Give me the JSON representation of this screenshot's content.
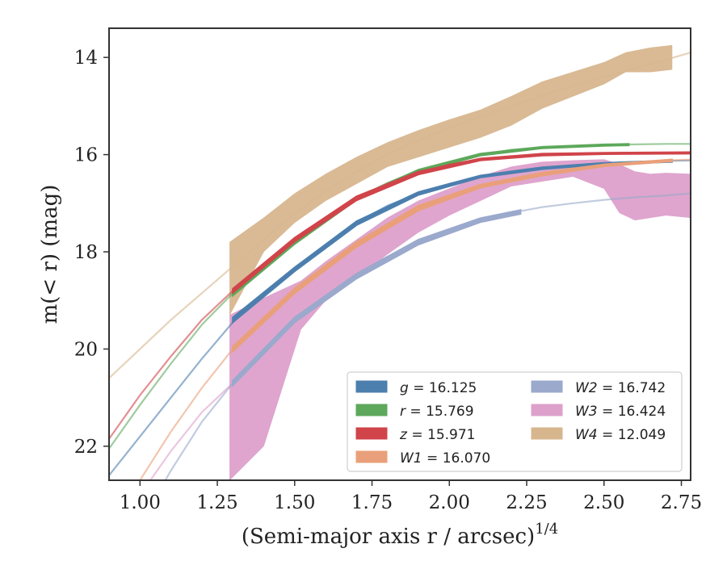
{
  "chart_data": {
    "type": "line",
    "title": "",
    "xlabel": "(Semi-major axis r / arcsec)",
    "xlabel_exponent": "1/4",
    "ylabel": "m(< r) (mag)",
    "xlim": [
      0.9,
      2.78
    ],
    "ylim": [
      22.7,
      13.4
    ],
    "y_inverted": true,
    "grid": false,
    "legend_position": "lower-right",
    "x_ticks": [
      "1.00",
      "1.25",
      "1.50",
      "1.75",
      "2.00",
      "2.25",
      "2.50",
      "2.75"
    ],
    "x_tick_values": [
      1.0,
      1.25,
      1.5,
      1.75,
      2.0,
      2.25,
      2.5,
      2.75
    ],
    "y_ticks": [
      "14",
      "16",
      "18",
      "20",
      "22"
    ],
    "y_tick_values": [
      14,
      16,
      18,
      20,
      22
    ],
    "series": [
      {
        "name": "g = 16.125",
        "legend_label": "g",
        "legend_value": "16.125",
        "color": "#4C7FAE",
        "model_x": [
          0.9,
          1.0,
          1.1,
          1.2,
          1.3,
          1.4,
          1.5,
          1.6,
          1.7,
          1.8,
          1.9,
          2.0,
          2.1,
          2.2,
          2.3,
          2.4,
          2.5,
          2.6,
          2.7,
          2.78
        ],
        "model_y": [
          22.6,
          21.8,
          21.0,
          20.2,
          19.45,
          18.9,
          18.35,
          17.85,
          17.4,
          17.05,
          16.8,
          16.6,
          16.45,
          16.35,
          16.28,
          16.22,
          16.18,
          16.15,
          16.13,
          16.12
        ],
        "data_x": [
          1.3,
          1.5,
          1.7,
          1.9,
          2.1,
          2.3,
          2.5,
          2.72
        ],
        "data_lo": [
          19.35,
          18.32,
          17.37,
          16.77,
          16.43,
          16.26,
          16.17,
          16.12
        ],
        "data_hi": [
          19.45,
          18.4,
          17.45,
          16.83,
          16.47,
          16.3,
          16.2,
          16.15
        ]
      },
      {
        "name": "r = 15.769",
        "legend_label": "r",
        "legend_value": "15.769",
        "color": "#5DA85B",
        "model_x": [
          0.9,
          1.0,
          1.1,
          1.2,
          1.3,
          1.4,
          1.5,
          1.6,
          1.7,
          1.8,
          1.9,
          2.0,
          2.1,
          2.2,
          2.3,
          2.4,
          2.5,
          2.6,
          2.7,
          2.78
        ],
        "model_y": [
          22.05,
          21.15,
          20.3,
          19.5,
          18.85,
          18.3,
          17.8,
          17.3,
          16.9,
          16.58,
          16.33,
          16.15,
          16.0,
          15.9,
          15.85,
          15.82,
          15.8,
          15.79,
          15.78,
          15.78
        ],
        "data_x": [
          1.3,
          1.5,
          1.7,
          1.9,
          2.1,
          2.3,
          2.5,
          2.58
        ],
        "data_lo": [
          18.82,
          17.78,
          16.88,
          16.31,
          15.98,
          15.84,
          15.79,
          15.78
        ],
        "data_hi": [
          18.9,
          17.84,
          16.93,
          16.36,
          16.02,
          15.87,
          15.82,
          15.81
        ]
      },
      {
        "name": "z = 15.971",
        "legend_label": "z",
        "legend_value": "15.971",
        "color": "#D0444A",
        "model_x": [
          0.9,
          1.0,
          1.1,
          1.2,
          1.3,
          1.4,
          1.5,
          1.6,
          1.7,
          1.8,
          1.9,
          2.0,
          2.1,
          2.2,
          2.3,
          2.4,
          2.5,
          2.6,
          2.7,
          2.78
        ],
        "model_y": [
          21.85,
          20.95,
          20.15,
          19.4,
          18.8,
          18.25,
          17.75,
          17.3,
          16.9,
          16.6,
          16.38,
          16.2,
          16.1,
          16.04,
          16.0,
          15.99,
          15.98,
          15.97,
          15.97,
          15.97
        ],
        "data_x": [
          1.3,
          1.5,
          1.7,
          1.9,
          2.1,
          2.3,
          2.5,
          2.78
        ],
        "data_lo": [
          18.76,
          17.71,
          16.86,
          16.35,
          16.08,
          15.98,
          15.96,
          15.95
        ],
        "data_hi": [
          18.84,
          17.79,
          16.94,
          16.41,
          16.12,
          16.02,
          15.99,
          15.98
        ]
      },
      {
        "name": "W1 = 16.070",
        "legend_label": "W1",
        "legend_value": "16.070",
        "color": "#E9A07A",
        "model_x": [
          0.9,
          1.0,
          1.1,
          1.2,
          1.3,
          1.4,
          1.5,
          1.6,
          1.7,
          1.8,
          1.9,
          2.0,
          2.1,
          2.2,
          2.3,
          2.4,
          2.5,
          2.6,
          2.7,
          2.78
        ],
        "model_y": [
          23.6,
          22.7,
          21.7,
          20.8,
          20.0,
          19.35,
          18.8,
          18.3,
          17.85,
          17.45,
          17.1,
          16.85,
          16.65,
          16.5,
          16.4,
          16.3,
          16.22,
          16.16,
          16.12,
          16.1
        ],
        "data_x": [
          1.3,
          1.5,
          1.7,
          1.9,
          2.1,
          2.3,
          2.5,
          2.72
        ],
        "data_lo": [
          19.95,
          18.75,
          17.8,
          17.05,
          16.62,
          16.37,
          16.2,
          16.1
        ],
        "data_hi": [
          20.05,
          18.85,
          17.9,
          17.15,
          16.68,
          16.43,
          16.24,
          16.14
        ]
      },
      {
        "name": "W2 = 16.742",
        "legend_label": "W2",
        "legend_value": "16.742",
        "color": "#9AA9CC",
        "model_x": [
          0.9,
          1.0,
          1.1,
          1.2,
          1.3,
          1.4,
          1.5,
          1.6,
          1.7,
          1.8,
          1.9,
          2.0,
          2.1,
          2.2,
          2.3,
          2.4,
          2.5,
          2.6,
          2.7,
          2.78
        ],
        "model_y": [
          24.8,
          23.6,
          22.5,
          21.5,
          20.7,
          20.0,
          19.4,
          18.9,
          18.5,
          18.1,
          17.8,
          17.55,
          17.35,
          17.2,
          17.08,
          17.0,
          16.93,
          16.88,
          16.84,
          16.8
        ],
        "data_x": [
          1.3,
          1.5,
          1.7,
          1.9,
          2.1,
          2.23
        ],
        "data_lo": [
          20.65,
          19.35,
          18.45,
          17.75,
          17.31,
          17.14
        ],
        "data_hi": [
          20.75,
          19.45,
          18.55,
          17.85,
          17.39,
          17.22
        ]
      },
      {
        "name": "W3 = 16.424",
        "legend_label": "W3",
        "legend_value": "16.424",
        "color": "#DDA0CB",
        "model_x": [
          0.9,
          1.0,
          1.1,
          1.2,
          1.3
        ],
        "model_y": [
          24.0,
          23.0,
          22.1,
          21.3,
          20.7
        ],
        "data_x": [
          1.29,
          1.4,
          1.52,
          1.6,
          1.7,
          1.8,
          1.9,
          2.0,
          2.1,
          2.2,
          2.3,
          2.4,
          2.5,
          2.55,
          2.6,
          2.65,
          2.7,
          2.78
        ],
        "data_lo": [
          19.3,
          18.95,
          18.6,
          18.2,
          17.75,
          17.3,
          16.95,
          16.7,
          16.45,
          16.25,
          16.15,
          16.12,
          16.1,
          16.2,
          16.35,
          16.4,
          16.38,
          16.4
        ],
        "data_hi": [
          22.7,
          22.0,
          19.6,
          19.0,
          18.55,
          18.05,
          17.6,
          17.25,
          16.95,
          16.65,
          16.55,
          16.45,
          16.7,
          17.2,
          17.35,
          17.3,
          17.25,
          17.3
        ]
      },
      {
        "name": "W4 = 12.049",
        "legend_label": "W4",
        "legend_value": "12.049",
        "color": "#D7B68E",
        "model_x": [
          0.9,
          1.0,
          1.1,
          1.2,
          1.3,
          1.4,
          1.5,
          1.6,
          1.7,
          1.8,
          1.9,
          2.0,
          2.1,
          2.2,
          2.3,
          2.4,
          2.5,
          2.6,
          2.7,
          2.78
        ],
        "model_y": [
          20.6,
          20.0,
          19.4,
          18.85,
          18.3,
          17.75,
          17.2,
          16.75,
          16.35,
          16.0,
          15.7,
          15.45,
          15.22,
          15.0,
          14.78,
          14.58,
          14.4,
          14.22,
          14.05,
          13.9
        ],
        "data_x": [
          1.29,
          1.4,
          1.5,
          1.6,
          1.7,
          1.8,
          1.9,
          2.0,
          2.1,
          2.2,
          2.3,
          2.4,
          2.5,
          2.57,
          2.65,
          2.72
        ],
        "data_lo": [
          17.8,
          17.3,
          16.8,
          16.4,
          16.05,
          15.75,
          15.5,
          15.28,
          15.08,
          14.8,
          14.5,
          14.3,
          14.1,
          13.9,
          13.8,
          13.75
        ],
        "data_hi": [
          19.3,
          18.0,
          17.4,
          16.95,
          16.6,
          16.25,
          16.05,
          15.85,
          15.65,
          15.4,
          15.05,
          14.8,
          14.55,
          14.3,
          14.3,
          14.25
        ]
      }
    ]
  }
}
